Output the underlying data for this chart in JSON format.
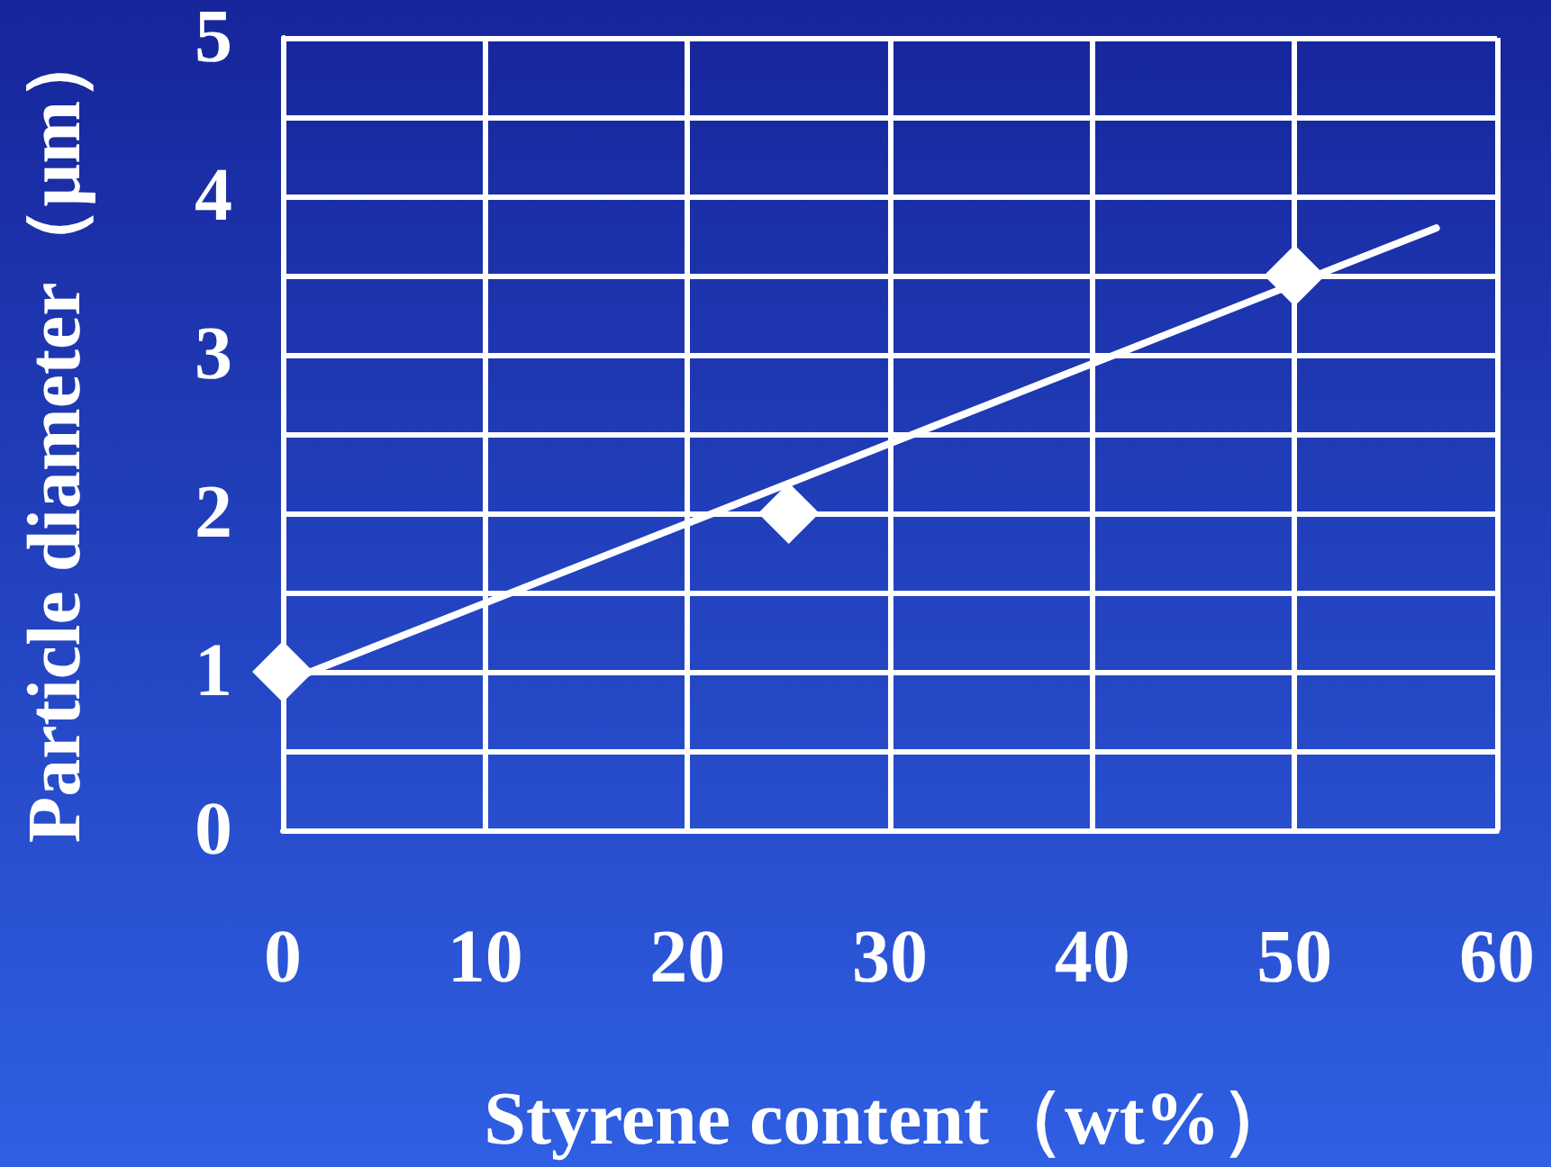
{
  "chart_data": {
    "type": "scatter",
    "xlabel": "Styrene content（wt%）",
    "ylabel": "Particle diameter（μm）",
    "series": [
      {
        "color": "#ffffff",
        "marker": "diamond",
        "x": [
          0,
          25,
          50
        ],
        "values": [
          1,
          2,
          3.5
        ]
      },
      {
        "type": "line",
        "color": "#ffffff",
        "marker": "none",
        "x": [
          0,
          57
        ],
        "values": [
          0.93,
          3.8
        ]
      }
    ],
    "xlim": [
      0,
      60
    ],
    "xticks": [
      0,
      10,
      20,
      30,
      40,
      50,
      60
    ],
    "ylim": [
      0,
      5
    ],
    "yticks": [
      0,
      {
        "value": 0.5,
        "label": null
      },
      1,
      {
        "value": 1.5,
        "label": null
      },
      2,
      {
        "value": 2.5,
        "label": null
      },
      3,
      {
        "value": 3.5,
        "label": null
      },
      4,
      {
        "value": 4.5,
        "label": null
      },
      5
    ],
    "grid": true,
    "line_style": "solid"
  }
}
